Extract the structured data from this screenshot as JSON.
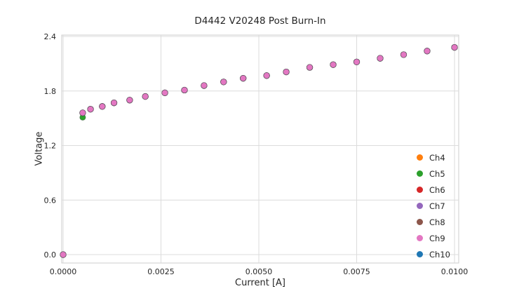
{
  "chart_data": {
    "type": "scatter",
    "title": "D4442 V20248 Post Burn-In",
    "xlabel": "Current [A]",
    "ylabel": "Voltage",
    "xlim": [
      0,
      0.01
    ],
    "ylim": [
      0,
      2.4
    ],
    "grid": true,
    "legend_position": "lower right",
    "xticks": {
      "values": [
        0,
        0.0025,
        0.005,
        0.0075,
        0.01
      ],
      "labels": [
        "0.0000",
        "0.0025",
        "0.0050",
        "0.0075",
        "0.0100"
      ]
    },
    "yticks": {
      "values": [
        0,
        0.6,
        1.2,
        1.8,
        2.4
      ],
      "labels": [
        "0.0",
        "0.6",
        "1.2",
        "1.8",
        "2.4"
      ]
    },
    "x": [
      0.0,
      0.0005,
      0.0007,
      0.001,
      0.0013,
      0.0017,
      0.0021,
      0.0026,
      0.0031,
      0.0036,
      0.0041,
      0.0046,
      0.0052,
      0.0057,
      0.0063,
      0.0069,
      0.0075,
      0.0081,
      0.0087,
      0.0093,
      0.01
    ],
    "series": [
      {
        "name": "Ch4",
        "color": "#ff7f0e",
        "y": [
          0.0,
          1.56,
          1.6,
          1.63,
          1.67,
          1.7,
          1.74,
          1.78,
          1.81,
          1.86,
          1.9,
          1.94,
          1.97,
          2.01,
          2.06,
          2.09,
          2.12,
          2.16,
          2.2,
          2.24,
          2.28
        ]
      },
      {
        "name": "Ch5",
        "color": "#2ca02c",
        "y": [
          0.0,
          1.51,
          1.6,
          1.63,
          1.67,
          1.7,
          1.74,
          1.78,
          1.81,
          1.86,
          1.9,
          1.94,
          1.97,
          2.01,
          2.06,
          2.09,
          2.12,
          2.16,
          2.2,
          2.24,
          2.28
        ]
      },
      {
        "name": "Ch6",
        "color": "#d62728",
        "y": [
          0.0,
          1.56,
          1.6,
          1.63,
          1.67,
          1.7,
          1.74,
          1.78,
          1.81,
          1.86,
          1.9,
          1.94,
          1.97,
          2.01,
          2.06,
          2.09,
          2.12,
          2.16,
          2.2,
          2.24,
          2.28
        ]
      },
      {
        "name": "Ch7",
        "color": "#9467bd",
        "y": [
          0.0,
          1.56,
          1.6,
          1.63,
          1.67,
          1.7,
          1.74,
          1.78,
          1.81,
          1.86,
          1.9,
          1.94,
          1.97,
          2.01,
          2.06,
          2.09,
          2.12,
          2.16,
          2.2,
          2.24,
          2.28
        ]
      },
      {
        "name": "Ch8",
        "color": "#8c564b",
        "y": [
          0.0,
          1.56,
          1.6,
          1.63,
          1.67,
          1.7,
          1.74,
          1.78,
          1.81,
          1.86,
          1.9,
          1.94,
          1.97,
          2.01,
          2.06,
          2.09,
          2.12,
          2.16,
          2.2,
          2.24,
          2.28
        ]
      },
      {
        "name": "Ch10",
        "color": "#1f77b4",
        "y": [
          0.0,
          1.56,
          1.6,
          1.63,
          1.67,
          1.7,
          1.74,
          1.78,
          1.81,
          1.86,
          1.9,
          1.94,
          1.97,
          2.01,
          2.06,
          2.09,
          2.12,
          2.16,
          2.2,
          2.24,
          2.28
        ]
      },
      {
        "name": "Ch9",
        "color": "#e377c2",
        "y": [
          0.0,
          1.56,
          1.6,
          1.63,
          1.67,
          1.7,
          1.74,
          1.78,
          1.81,
          1.86,
          1.9,
          1.94,
          1.97,
          2.01,
          2.06,
          2.09,
          2.12,
          2.16,
          2.2,
          2.24,
          2.28
        ]
      }
    ],
    "legend": [
      {
        "label": "Ch4",
        "color": "#ff7f0e"
      },
      {
        "label": "Ch5",
        "color": "#2ca02c"
      },
      {
        "label": "Ch6",
        "color": "#d62728"
      },
      {
        "label": "Ch7",
        "color": "#9467bd"
      },
      {
        "label": "Ch8",
        "color": "#8c564b"
      },
      {
        "label": "Ch9",
        "color": "#e377c2"
      },
      {
        "label": "Ch10",
        "color": "#1f77b4"
      }
    ],
    "colors": {
      "grid": "#dcdcdc",
      "border": "#cccccc",
      "text": "#262626",
      "background": "#ffffff"
    }
  }
}
